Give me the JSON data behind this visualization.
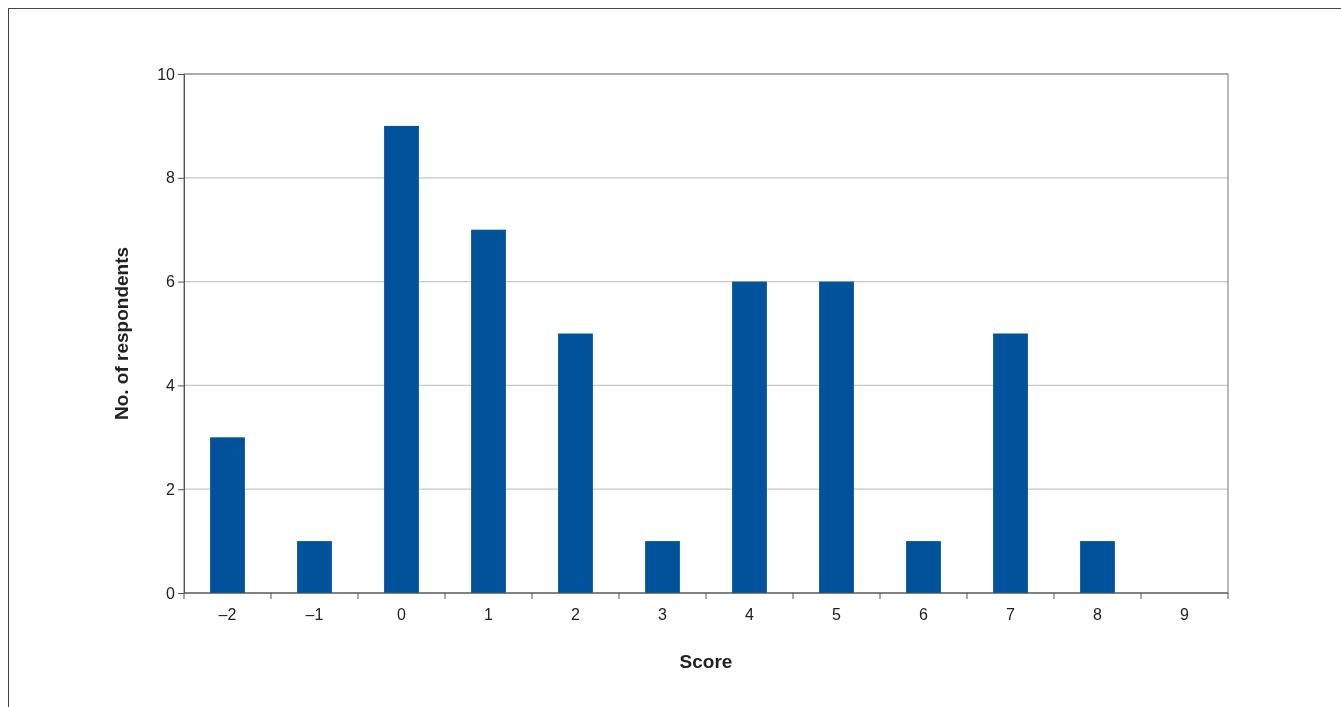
{
  "chart_data": {
    "type": "bar",
    "xlabel": "Score",
    "ylabel": "No. of respondents",
    "categories": [
      "–2",
      "–1",
      "0",
      "1",
      "2",
      "3",
      "4",
      "5",
      "6",
      "7",
      "8",
      "9"
    ],
    "values": [
      3,
      1,
      9,
      7,
      5,
      1,
      6,
      6,
      1,
      5,
      1,
      0
    ],
    "color": "#00529b",
    "ylim": [
      0,
      10
    ],
    "yticks": [
      0,
      2,
      4,
      6,
      8,
      10
    ],
    "grid": "y"
  }
}
